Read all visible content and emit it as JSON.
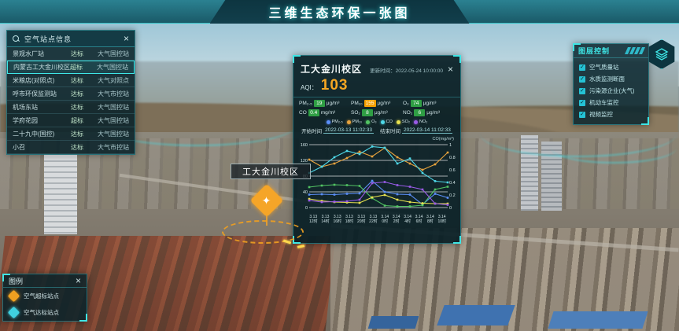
{
  "title_bar": {
    "title": "三维生态环保一张图"
  },
  "station_panel": {
    "title": "空气站点信息",
    "close_label": "×",
    "columns": [
      "站点名称",
      "状态",
      "类型"
    ],
    "rows": [
      {
        "name": "景观水厂站",
        "level": "达标",
        "type": "大气国控站",
        "selected": false
      },
      {
        "name": "内蒙古工大金川校区",
        "level": "超标",
        "type": "大气国控站",
        "selected": true
      },
      {
        "name": "米粮店(对照点)",
        "level": "达标",
        "type": "大气对照点",
        "selected": false
      },
      {
        "name": "呼市环保监测站",
        "level": "达标",
        "type": "大气市控站",
        "selected": false
      },
      {
        "name": "机场东站",
        "level": "达标",
        "type": "大气国控站",
        "selected": false
      },
      {
        "name": "学府花园",
        "level": "超标",
        "type": "大气国控站",
        "selected": false
      },
      {
        "name": "二十九中(国控)",
        "level": "达标",
        "type": "大气国控站",
        "selected": false
      },
      {
        "name": "小召",
        "level": "达标",
        "type": "大气市控站",
        "selected": false
      }
    ]
  },
  "popup": {
    "title": "工大金川校区",
    "update_label": "更新时间：",
    "update_time": "2022-05-24 10:00:00",
    "close_label": "×",
    "aqi_label": "AQI：",
    "aqi_value": "103",
    "aqi_color": "#f5a623",
    "pollutants": [
      {
        "name": "PM₂.₅",
        "value": "19",
        "unit": "μg/m³",
        "chip": "#2f9e44"
      },
      {
        "name": "PM₁₀",
        "value": "155",
        "unit": "μg/m³",
        "chip": "#f59f00"
      },
      {
        "name": "O₃",
        "value": "74",
        "unit": "μg/m³",
        "chip": "#2f9e44"
      },
      {
        "name": "CO",
        "value": "0.4",
        "unit": "mg/m³",
        "chip": "#2f9e44"
      },
      {
        "name": "SO₂",
        "value": "8",
        "unit": "μg/m³",
        "chip": "#2f9e44"
      },
      {
        "name": "NO₂",
        "value": "6",
        "unit": "μg/m³",
        "chip": "#2f9e44"
      }
    ],
    "start_label": "开始时间",
    "start_value": "2022-03-13 11:02:33",
    "end_label": "结束时间",
    "end_value": "2022-03-14 11:02:33"
  },
  "chart_data": {
    "type": "line",
    "title": "",
    "x": [
      "3.13\n12时",
      "3.13\n14时",
      "3.13\n16时",
      "3.13\n18时",
      "3.13\n20时",
      "3.13\n22时",
      "3.14\n0时",
      "3.14\n2时",
      "3.14\n4时",
      "3.14\n6时",
      "3.14\n8时",
      "3.14\n10时"
    ],
    "series": [
      {
        "name": "PM₂.₅",
        "color": "#5b8ff9",
        "axis": "left",
        "values": [
          33,
          34,
          33,
          35,
          36,
          68,
          40,
          34,
          33,
          8,
          35,
          25
        ]
      },
      {
        "name": "PM₁₀",
        "color": "#e8a33d",
        "axis": "left",
        "values": [
          122,
          104,
          112,
          126,
          142,
          130,
          152,
          128,
          112,
          96,
          110,
          140
        ]
      },
      {
        "name": "O₃",
        "color": "#52c463",
        "axis": "left",
        "values": [
          52,
          56,
          58,
          57,
          55,
          24,
          5,
          3,
          3,
          6,
          46,
          53
        ]
      },
      {
        "name": "CO",
        "color": "#4fd8e8",
        "axis": "right",
        "values": [
          0.55,
          0.65,
          0.8,
          0.9,
          0.85,
          0.97,
          0.95,
          0.7,
          0.78,
          0.55,
          0.42,
          0.4
        ]
      },
      {
        "name": "SO₂",
        "color": "#e8e24f",
        "axis": "left",
        "values": [
          22,
          17,
          14,
          13,
          12,
          26,
          32,
          20,
          14,
          11,
          10,
          10
        ]
      },
      {
        "name": "NO₂",
        "color": "#9a5be8",
        "axis": "left",
        "values": [
          18,
          14,
          15,
          16,
          20,
          62,
          65,
          57,
          53,
          46,
          10,
          7
        ]
      }
    ],
    "left_axis": {
      "ticks": [
        0,
        40,
        80,
        120,
        160
      ],
      "max": 160
    },
    "right_axis": {
      "ticks": [
        0,
        0.2,
        0.4,
        0.6,
        0.8,
        1
      ],
      "max": 1,
      "title": "CO(mg/m³)"
    },
    "grid": true,
    "legend_position": "top"
  },
  "layer_panel": {
    "title": "图层控制",
    "items": [
      {
        "label": "空气质量站",
        "checked": true
      },
      {
        "label": "水质监测断面",
        "checked": true
      },
      {
        "label": "污染源企业(大气)",
        "checked": true
      },
      {
        "label": "机动车监控",
        "checked": true
      },
      {
        "label": "视频监控",
        "checked": true
      }
    ]
  },
  "legend_panel": {
    "title": "图例",
    "close_label": "×",
    "items": [
      {
        "label": "空气超标站点",
        "color": "#f0a020"
      },
      {
        "label": "空气达标站点",
        "color": "#40d0e0"
      }
    ]
  },
  "map": {
    "marker_label": "工大金川校区"
  }
}
